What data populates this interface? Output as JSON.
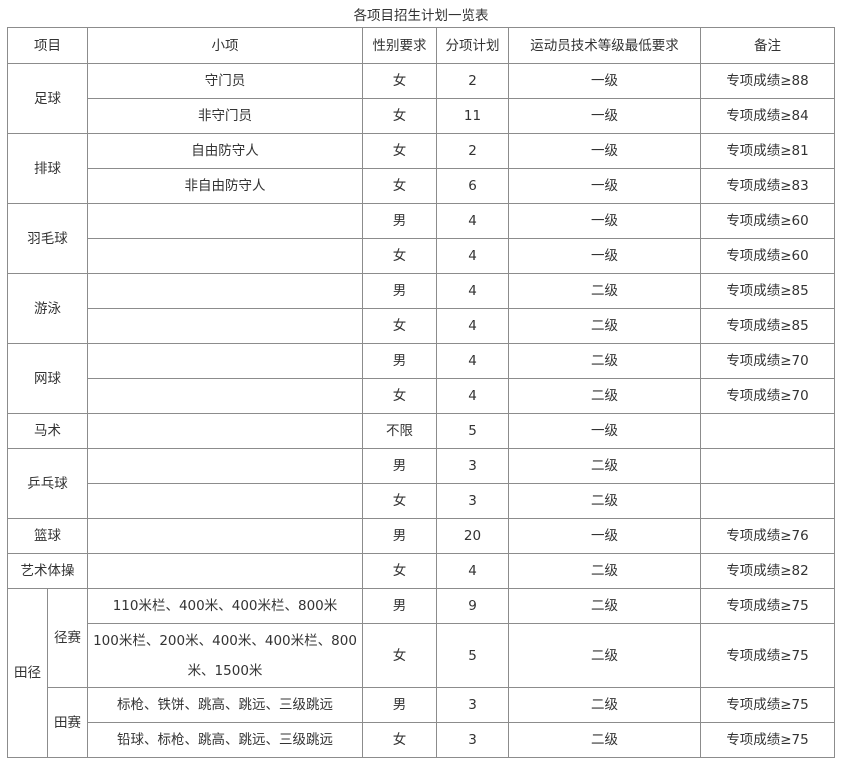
{
  "title": "各项目招生计划一览表",
  "headers": [
    "项目",
    "小项",
    "性别要求",
    "分项计划",
    "运动员技术等级最低要求",
    "备注"
  ],
  "groups": [
    {
      "name": "足球",
      "rows": [
        {
          "sub": "守门员",
          "gender": "女",
          "plan": "2",
          "level": "一级",
          "note": "专项成绩≥88"
        },
        {
          "sub": "非守门员",
          "gender": "女",
          "plan": "11",
          "level": "一级",
          "note": "专项成绩≥84"
        }
      ]
    },
    {
      "name": "排球",
      "rows": [
        {
          "sub": "自由防守人",
          "gender": "女",
          "plan": "2",
          "level": "一级",
          "note": "专项成绩≥81"
        },
        {
          "sub": "非自由防守人",
          "gender": "女",
          "plan": "6",
          "level": "一级",
          "note": "专项成绩≥83"
        }
      ]
    },
    {
      "name": "羽毛球",
      "rows": [
        {
          "sub": "",
          "gender": "男",
          "plan": "4",
          "level": "一级",
          "note": "专项成绩≥60"
        },
        {
          "sub": "",
          "gender": "女",
          "plan": "4",
          "level": "一级",
          "note": "专项成绩≥60"
        }
      ]
    },
    {
      "name": "游泳",
      "rows": [
        {
          "sub": "",
          "gender": "男",
          "plan": "4",
          "level": "二级",
          "note": "专项成绩≥85"
        },
        {
          "sub": "",
          "gender": "女",
          "plan": "4",
          "level": "二级",
          "note": "专项成绩≥85"
        }
      ]
    },
    {
      "name": "网球",
      "rows": [
        {
          "sub": "",
          "gender": "男",
          "plan": "4",
          "level": "二级",
          "note": "专项成绩≥70"
        },
        {
          "sub": "",
          "gender": "女",
          "plan": "4",
          "level": "二级",
          "note": "专项成绩≥70"
        }
      ]
    },
    {
      "name": "马术",
      "rows": [
        {
          "sub": "",
          "gender": "不限",
          "plan": "5",
          "level": "一级",
          "note": ""
        }
      ]
    },
    {
      "name": "乒乓球",
      "rows": [
        {
          "sub": "",
          "gender": "男",
          "plan": "3",
          "level": "二级",
          "note": ""
        },
        {
          "sub": "",
          "gender": "女",
          "plan": "3",
          "level": "二级",
          "note": ""
        }
      ]
    },
    {
      "name": "篮球",
      "rows": [
        {
          "sub": "",
          "gender": "男",
          "plan": "20",
          "level": "一级",
          "note": "专项成绩≥76"
        }
      ]
    },
    {
      "name": "艺术体操",
      "rows": [
        {
          "sub": "",
          "gender": "女",
          "plan": "4",
          "level": "二级",
          "note": "专项成绩≥82"
        }
      ]
    }
  ],
  "athletics": {
    "name": "田径",
    "subgroups": [
      {
        "name": "径赛",
        "rows": [
          {
            "sub": "110米栏、400米、400米栏、800米",
            "gender": "男",
            "plan": "9",
            "level": "二级",
            "note": "专项成绩≥75"
          },
          {
            "sub": "100米栏、200米、400米、400米栏、800米、1500米",
            "gender": "女",
            "plan": "5",
            "level": "二级",
            "note": "专项成绩≥75",
            "tall": true
          }
        ]
      },
      {
        "name": "田赛",
        "rows": [
          {
            "sub": "标枪、铁饼、跳高、跳远、三级跳远",
            "gender": "男",
            "plan": "3",
            "level": "二级",
            "note": "专项成绩≥75"
          },
          {
            "sub": "铅球、标枪、跳高、跳远、三级跳远",
            "gender": "女",
            "plan": "3",
            "level": "二级",
            "note": "专项成绩≥75"
          }
        ]
      }
    ]
  }
}
